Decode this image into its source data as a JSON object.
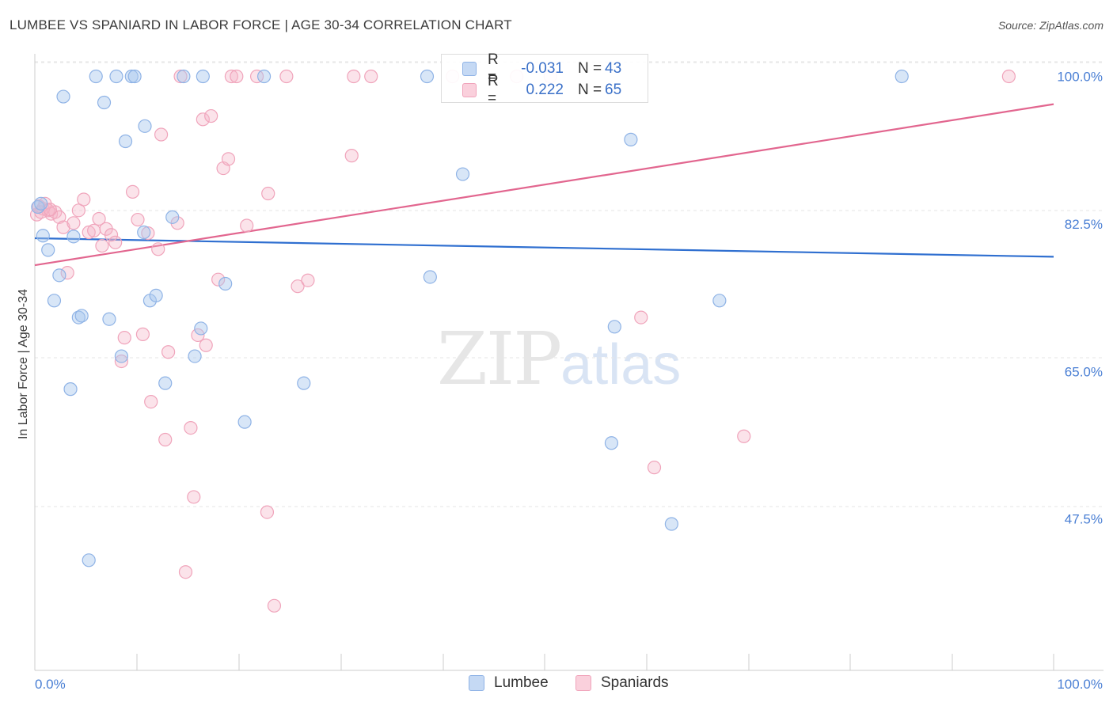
{
  "header": {
    "title": "LUMBEE VS SPANIARD IN LABOR FORCE | AGE 30-34 CORRELATION CHART",
    "source": "Source: ZipAtlas.com"
  },
  "watermark": {
    "zip": "ZIP",
    "atlas": "atlas"
  },
  "legend": {
    "rows": [
      {
        "r_label": "R =",
        "r_value": "-0.031",
        "n_label": "N =",
        "n_value": "43",
        "color": "#a9c7ee"
      },
      {
        "r_label": "R =",
        "r_value": "0.222",
        "n_label": "N =",
        "n_value": "65",
        "color": "#f5b6c8"
      }
    ]
  },
  "bottom_legend": {
    "series1": "Lumbee",
    "series2": "Spaniards"
  },
  "chart_data": {
    "type": "scatter",
    "title": "LUMBEE VS SPANIARD IN LABOR FORCE | AGE 30-34 CORRELATION CHART",
    "xlabel": "",
    "ylabel": "In Labor Force | Age 30-34",
    "xlim": [
      0,
      100
    ],
    "ylim": [
      30,
      102
    ],
    "x_tick_labels": {
      "left": "0.0%",
      "right": "100.0%"
    },
    "y_ticks": [
      100,
      82.5,
      65,
      47.5
    ],
    "y_tick_labels": [
      "100.0%",
      "82.5%",
      "65.0%",
      "47.5%"
    ],
    "series": [
      {
        "name": "Lumbee",
        "color": "#a9c7ee",
        "line_color": "#2f6fd0",
        "trend": {
          "x0": 0,
          "y0": 80.8,
          "x1": 100,
          "y1": 78.6
        },
        "points": [
          [
            0.3,
            84.5
          ],
          [
            0.8,
            81.1
          ],
          [
            1.3,
            79.4
          ],
          [
            1.9,
            73.4
          ],
          [
            2.4,
            76.4
          ],
          [
            2.8,
            97.6
          ],
          [
            3.5,
            62.9
          ],
          [
            3.8,
            81.0
          ],
          [
            4.3,
            71.4
          ],
          [
            4.6,
            71.6
          ],
          [
            5.3,
            42.6
          ],
          [
            6.0,
            100.0
          ],
          [
            6.8,
            96.9
          ],
          [
            7.3,
            71.2
          ],
          [
            8.0,
            100.0
          ],
          [
            8.5,
            66.8
          ],
          [
            8.9,
            92.3
          ],
          [
            9.5,
            100.0
          ],
          [
            9.8,
            100.0
          ],
          [
            10.7,
            81.5
          ],
          [
            10.8,
            94.1
          ],
          [
            11.3,
            73.4
          ],
          [
            11.9,
            74.0
          ],
          [
            12.8,
            63.6
          ],
          [
            13.5,
            83.3
          ],
          [
            14.6,
            100.0
          ],
          [
            15.7,
            66.8
          ],
          [
            16.3,
            70.1
          ],
          [
            16.5,
            100.0
          ],
          [
            18.7,
            75.4
          ],
          [
            20.6,
            59.0
          ],
          [
            22.5,
            100.0
          ],
          [
            26.4,
            63.6
          ],
          [
            38.5,
            100.0
          ],
          [
            38.8,
            76.2
          ],
          [
            42.0,
            88.4
          ],
          [
            56.6,
            56.5
          ],
          [
            56.9,
            70.3
          ],
          [
            58.5,
            92.5
          ],
          [
            62.5,
            46.9
          ],
          [
            67.2,
            73.4
          ],
          [
            85.1,
            100.0
          ],
          [
            0.6,
            84.9
          ]
        ]
      },
      {
        "name": "Spaniards",
        "color": "#f5b6c8",
        "line_color": "#e2668f",
        "trend": {
          "x0": 0,
          "y0": 77.6,
          "x1": 100,
          "y1": 96.7
        },
        "points": [
          [
            0.2,
            83.6
          ],
          [
            0.4,
            84.6
          ],
          [
            0.8,
            84.3
          ],
          [
            1.0,
            84.9
          ],
          [
            1.3,
            84.1
          ],
          [
            1.6,
            83.7
          ],
          [
            2.0,
            83.9
          ],
          [
            2.4,
            83.3
          ],
          [
            2.8,
            82.1
          ],
          [
            3.2,
            76.7
          ],
          [
            3.8,
            82.6
          ],
          [
            4.3,
            84.1
          ],
          [
            4.8,
            85.4
          ],
          [
            5.3,
            81.5
          ],
          [
            5.8,
            81.7
          ],
          [
            6.3,
            83.1
          ],
          [
            6.6,
            79.9
          ],
          [
            7.0,
            81.9
          ],
          [
            7.5,
            81.2
          ],
          [
            7.9,
            80.3
          ],
          [
            8.5,
            66.2
          ],
          [
            8.8,
            69.0
          ],
          [
            9.6,
            86.3
          ],
          [
            10.1,
            83.0
          ],
          [
            10.6,
            69.4
          ],
          [
            11.1,
            81.4
          ],
          [
            11.4,
            61.4
          ],
          [
            12.1,
            79.5
          ],
          [
            12.4,
            93.1
          ],
          [
            12.8,
            56.9
          ],
          [
            13.1,
            67.3
          ],
          [
            14.0,
            82.6
          ],
          [
            14.3,
            100.0
          ],
          [
            14.8,
            41.2
          ],
          [
            15.3,
            58.3
          ],
          [
            15.6,
            50.1
          ],
          [
            16.0,
            69.3
          ],
          [
            16.5,
            94.9
          ],
          [
            16.8,
            68.1
          ],
          [
            17.3,
            95.3
          ],
          [
            18.0,
            75.9
          ],
          [
            18.5,
            89.1
          ],
          [
            19.0,
            90.2
          ],
          [
            19.3,
            100.0
          ],
          [
            19.8,
            100.0
          ],
          [
            20.8,
            82.3
          ],
          [
            21.8,
            100.0
          ],
          [
            22.8,
            48.3
          ],
          [
            22.9,
            86.1
          ],
          [
            23.5,
            37.2
          ],
          [
            24.7,
            100.0
          ],
          [
            25.8,
            75.1
          ],
          [
            26.8,
            75.8
          ],
          [
            31.1,
            90.6
          ],
          [
            31.3,
            100.0
          ],
          [
            33.0,
            100.0
          ],
          [
            41.0,
            100.0
          ],
          [
            47.3,
            100.0
          ],
          [
            50.6,
            100.0
          ],
          [
            59.5,
            71.4
          ],
          [
            60.8,
            53.6
          ],
          [
            69.6,
            57.3
          ],
          [
            95.6,
            100.0
          ],
          [
            0.6,
            83.9
          ],
          [
            1.5,
            84.2
          ]
        ]
      }
    ]
  }
}
